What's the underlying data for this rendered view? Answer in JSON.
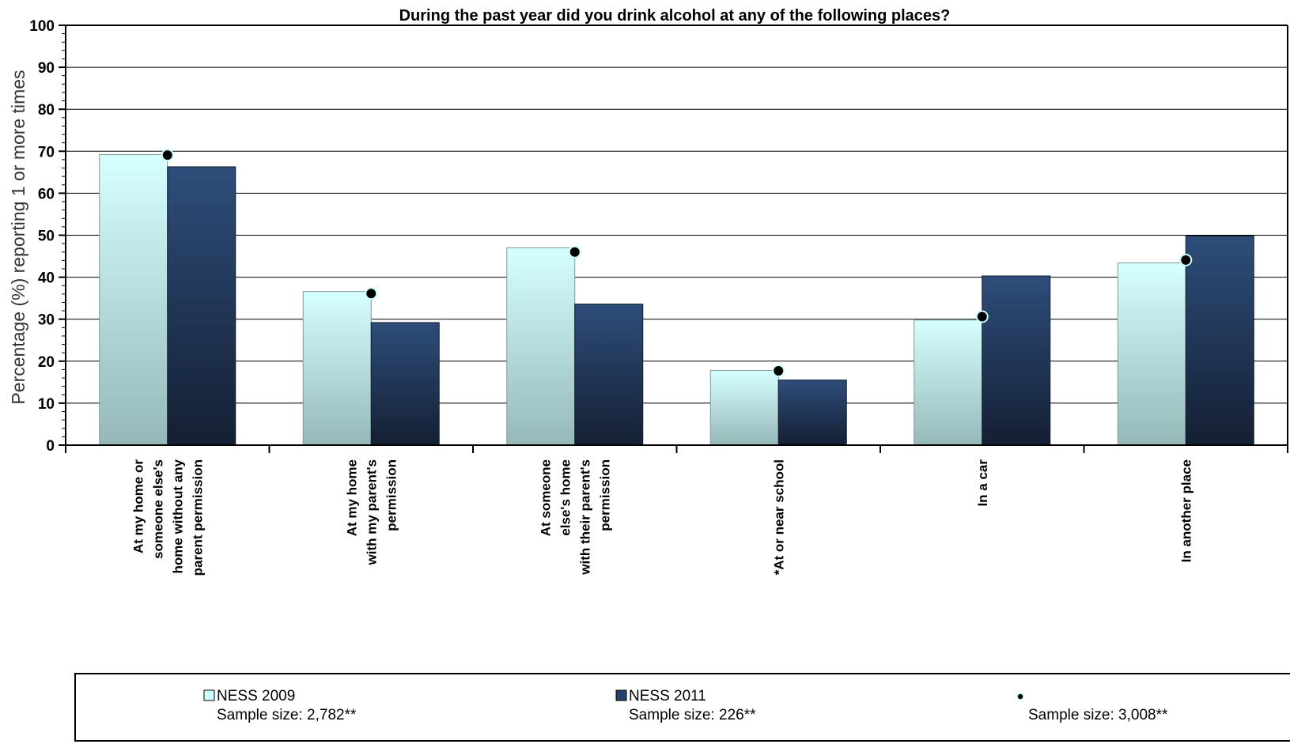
{
  "chart_data": {
    "type": "bar",
    "title": "During the past year did you drink alcohol at any of the following places?",
    "ylabel": "Percentage (%) reporting 1 or more times",
    "ylim": [
      0,
      100
    ],
    "yticks": [
      "0",
      "10",
      "20",
      "30",
      "40",
      "50",
      "60",
      "70",
      "80",
      "90",
      "100"
    ],
    "grid": true,
    "categories": [
      [
        "At my home or",
        "someone else's",
        "home without any",
        "parent permission"
      ],
      [
        "At my home",
        "with my parent's",
        "permission"
      ],
      [
        "At someone",
        "else's home",
        "with their parent's",
        "permission"
      ],
      [
        "*At or near school"
      ],
      [
        "In a car"
      ],
      [
        "In another place"
      ]
    ],
    "series": [
      {
        "name": "NESS 2009",
        "sample": "Sample size: 2,782**",
        "kind": "bar",
        "color": "#ccffff",
        "values": [
          69.2,
          36.6,
          47.0,
          17.8,
          29.8,
          43.4
        ]
      },
      {
        "name": "NESS 2011",
        "sample": "Sample size: 226**",
        "kind": "bar",
        "color": "#243f6b",
        "values": [
          66.3,
          29.2,
          33.6,
          15.5,
          40.3,
          49.8
        ]
      },
      {
        "name": "",
        "sample": "Sample size: 3,008**",
        "kind": "point",
        "color": "#000000",
        "values": [
          69.1,
          36.1,
          46.0,
          17.7,
          30.6,
          44.1
        ]
      }
    ],
    "legend_position": "bottom"
  }
}
